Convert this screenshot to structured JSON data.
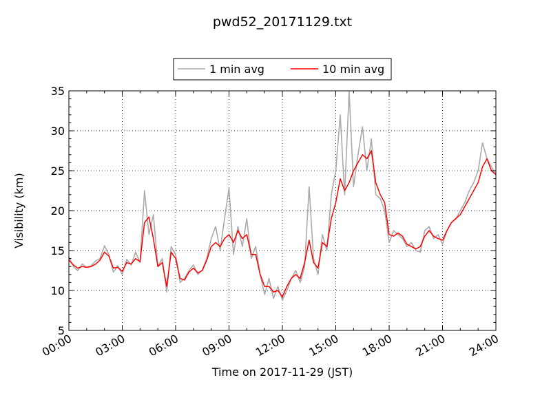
{
  "chart_data": {
    "type": "line",
    "title": "pwd52_20171129.txt",
    "xlabel": "Time on 2017-11-29 (JST)",
    "ylabel": "Visibility (km)",
    "xlim": [
      "00:00",
      "24:00"
    ],
    "ylim": [
      5,
      35
    ],
    "x_ticks": [
      "00:00",
      "03:00",
      "06:00",
      "09:00",
      "12:00",
      "15:00",
      "18:00",
      "21:00",
      "24:00"
    ],
    "y_ticks": [
      "5",
      "10",
      "15",
      "20",
      "25",
      "30",
      "35"
    ],
    "grid": true,
    "legend_position": "top-center",
    "series": [
      {
        "name": "1 min avg",
        "color": "#aaaaaa",
        "x": [
          "00:00",
          "00:15",
          "00:30",
          "00:45",
          "01:00",
          "01:15",
          "01:30",
          "01:45",
          "02:00",
          "02:15",
          "02:30",
          "02:45",
          "03:00",
          "03:15",
          "03:30",
          "03:45",
          "04:00",
          "04:15",
          "04:30",
          "04:45",
          "05:00",
          "05:15",
          "05:30",
          "05:45",
          "06:00",
          "06:15",
          "06:30",
          "06:45",
          "07:00",
          "07:15",
          "07:30",
          "07:45",
          "08:00",
          "08:15",
          "08:30",
          "08:45",
          "09:00",
          "09:15",
          "09:30",
          "09:45",
          "10:00",
          "10:15",
          "10:30",
          "10:45",
          "11:00",
          "11:15",
          "11:30",
          "11:45",
          "12:00",
          "12:15",
          "12:30",
          "12:45",
          "13:00",
          "13:15",
          "13:30",
          "13:45",
          "14:00",
          "14:15",
          "14:30",
          "14:45",
          "15:00",
          "15:15",
          "15:30",
          "15:45",
          "16:00",
          "16:15",
          "16:30",
          "16:45",
          "17:00",
          "17:15",
          "17:30",
          "17:45",
          "18:00",
          "18:15",
          "18:30",
          "18:45",
          "19:00",
          "19:15",
          "19:30",
          "19:45",
          "20:00",
          "20:15",
          "20:30",
          "20:45",
          "21:00",
          "21:15",
          "21:30",
          "21:45",
          "22:00",
          "22:15",
          "22:30",
          "22:45",
          "23:00",
          "23:15",
          "23:30",
          "23:45",
          "24:00"
        ],
        "values": [
          14.2,
          13.0,
          12.5,
          13.3,
          12.9,
          13.1,
          13.7,
          14.0,
          15.6,
          14.5,
          12.3,
          13.1,
          12.0,
          13.9,
          13.2,
          14.8,
          13.5,
          22.5,
          17.0,
          19.5,
          13.0,
          14.0,
          9.8,
          15.5,
          14.5,
          11.0,
          11.5,
          12.5,
          13.2,
          12.0,
          12.6,
          14.0,
          16.5,
          18.0,
          15.0,
          19.0,
          22.8,
          14.5,
          18.0,
          15.5,
          19.0,
          14.0,
          15.5,
          12.0,
          9.5,
          11.5,
          9.0,
          10.5,
          8.8,
          10.0,
          11.5,
          12.5,
          11.0,
          13.0,
          23.0,
          14.0,
          12.0,
          17.0,
          15.0,
          22.0,
          25.0,
          32.0,
          22.0,
          35.0,
          23.0,
          27.0,
          30.5,
          25.0,
          29.0,
          22.0,
          21.5,
          20.0,
          16.0,
          17.5,
          17.0,
          16.5,
          15.5,
          16.0,
          15.0,
          14.8,
          17.5,
          18.0,
          16.5,
          17.0,
          15.8,
          17.5,
          18.5,
          19.0,
          20.0,
          21.0,
          22.5,
          23.5,
          25.0,
          28.5,
          26.5,
          25.5,
          24.5
        ]
      },
      {
        "name": "10 min avg",
        "color": "#ff0000",
        "x": [
          "00:00",
          "00:15",
          "00:30",
          "00:45",
          "01:00",
          "01:15",
          "01:30",
          "01:45",
          "02:00",
          "02:15",
          "02:30",
          "02:45",
          "03:00",
          "03:15",
          "03:30",
          "03:45",
          "04:00",
          "04:15",
          "04:30",
          "04:45",
          "05:00",
          "05:15",
          "05:30",
          "05:45",
          "06:00",
          "06:15",
          "06:30",
          "06:45",
          "07:00",
          "07:15",
          "07:30",
          "07:45",
          "08:00",
          "08:15",
          "08:30",
          "08:45",
          "09:00",
          "09:15",
          "09:30",
          "09:45",
          "10:00",
          "10:15",
          "10:30",
          "10:45",
          "11:00",
          "11:15",
          "11:30",
          "11:45",
          "12:00",
          "12:15",
          "12:30",
          "12:45",
          "13:00",
          "13:15",
          "13:30",
          "13:45",
          "14:00",
          "14:15",
          "14:30",
          "14:45",
          "15:00",
          "15:15",
          "15:30",
          "15:45",
          "16:00",
          "16:15",
          "16:30",
          "16:45",
          "17:00",
          "17:15",
          "17:30",
          "17:45",
          "18:00",
          "18:15",
          "18:30",
          "18:45",
          "19:00",
          "19:15",
          "19:30",
          "19:45",
          "20:00",
          "20:15",
          "20:30",
          "20:45",
          "21:00",
          "21:15",
          "21:30",
          "21:45",
          "22:00",
          "22:15",
          "22:30",
          "22:45",
          "23:00",
          "23:15",
          "23:30",
          "23:45",
          "24:00"
        ],
        "values": [
          13.8,
          13.2,
          12.8,
          13.0,
          12.9,
          13.0,
          13.3,
          13.8,
          14.8,
          14.3,
          12.8,
          12.9,
          12.4,
          13.5,
          13.3,
          14.0,
          13.6,
          18.5,
          19.2,
          16.5,
          13.0,
          13.5,
          10.5,
          14.8,
          14.0,
          11.5,
          11.3,
          12.3,
          12.8,
          12.2,
          12.5,
          13.8,
          15.5,
          16.0,
          15.5,
          16.5,
          17.0,
          16.0,
          17.5,
          16.5,
          17.0,
          14.5,
          14.5,
          12.0,
          10.5,
          10.5,
          9.8,
          10.0,
          9.2,
          10.5,
          11.5,
          12.0,
          11.5,
          13.5,
          16.3,
          13.5,
          12.8,
          16.0,
          15.5,
          19.0,
          21.0,
          24.0,
          22.5,
          23.5,
          25.0,
          26.0,
          27.0,
          26.5,
          27.5,
          23.5,
          22.0,
          21.0,
          17.0,
          16.8,
          17.2,
          16.8,
          15.8,
          15.5,
          15.2,
          15.5,
          16.8,
          17.5,
          16.8,
          16.5,
          16.3,
          17.5,
          18.5,
          19.0,
          19.5,
          20.5,
          21.5,
          22.5,
          23.5,
          25.5,
          26.5,
          25.0,
          24.5
        ]
      }
    ]
  }
}
